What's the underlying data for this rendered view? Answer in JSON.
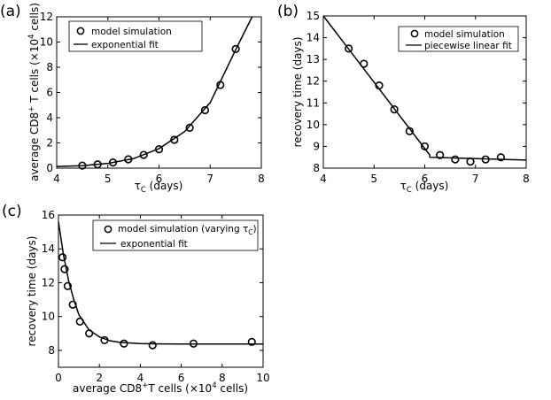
{
  "chart_data": [
    {
      "panel": "(a)",
      "type": "scatter",
      "xlabel": "τC (days)",
      "ylabel": "average CD8⁺ T cells (×10⁴ cells)",
      "xlim": [
        4,
        8
      ],
      "ylim": [
        0,
        12
      ],
      "xticks": [
        4,
        5,
        6,
        7,
        8
      ],
      "yticks": [
        0,
        2,
        4,
        6,
        8,
        10,
        12
      ],
      "grid": false,
      "legend_position": "top-left",
      "series": [
        {
          "name": "model simulation",
          "kind": "markers",
          "x": [
            4.5,
            4.8,
            5.1,
            5.4,
            5.7,
            6.0,
            6.3,
            6.6,
            6.9,
            7.2,
            7.5
          ],
          "y": [
            0.2,
            0.3,
            0.45,
            0.7,
            1.05,
            1.5,
            2.25,
            3.2,
            4.6,
            6.6,
            9.45
          ]
        },
        {
          "name": "exponential fit",
          "kind": "line",
          "x": [
            4.0,
            4.5,
            5.0,
            5.5,
            6.0,
            6.5,
            7.0,
            7.5,
            7.82
          ],
          "y": [
            0.13,
            0.2,
            0.38,
            0.75,
            1.55,
            2.9,
            5.2,
            9.4,
            12.0
          ]
        }
      ]
    },
    {
      "panel": "(b)",
      "type": "scatter",
      "xlabel": "τC (days)",
      "ylabel": "recovery time (days)",
      "xlim": [
        4,
        8
      ],
      "ylim": [
        8,
        15
      ],
      "xticks": [
        4,
        5,
        6,
        7,
        8
      ],
      "yticks": [
        8,
        9,
        10,
        11,
        12,
        13,
        14,
        15
      ],
      "grid": false,
      "legend_position": "top-right",
      "series": [
        {
          "name": "model simulation",
          "kind": "markers",
          "x": [
            4.5,
            4.8,
            5.1,
            5.4,
            5.7,
            6.0,
            6.3,
            6.6,
            6.9,
            7.2,
            7.5
          ],
          "y": [
            13.5,
            12.8,
            11.8,
            10.7,
            9.7,
            9.0,
            8.6,
            8.4,
            8.3,
            8.4,
            8.5
          ]
        },
        {
          "name": "piecewise linear fit",
          "kind": "line",
          "x": [
            4.0,
            6.1,
            6.1,
            8.0
          ],
          "y": [
            15.0,
            8.6,
            8.5,
            8.37
          ]
        }
      ]
    },
    {
      "panel": "(c)",
      "type": "scatter",
      "xlabel": "average CD8⁺T cells (×10⁴ cells)",
      "ylabel": "recovery time (days)",
      "xlim": [
        0,
        10
      ],
      "ylim": [
        7,
        16
      ],
      "xticks": [
        0,
        2,
        4,
        6,
        8,
        10
      ],
      "yticks": [
        8,
        10,
        12,
        14,
        16
      ],
      "grid": false,
      "legend_position": "top-right",
      "series": [
        {
          "name": "model simulation (varying τC)",
          "kind": "markers",
          "x": [
            0.2,
            0.3,
            0.45,
            0.7,
            1.05,
            1.5,
            2.25,
            3.2,
            4.6,
            6.6,
            9.45
          ],
          "y": [
            13.5,
            12.8,
            11.8,
            10.7,
            9.7,
            9.0,
            8.6,
            8.4,
            8.3,
            8.4,
            8.5
          ]
        },
        {
          "name": "exponential fit",
          "kind": "line",
          "x": [
            0.0,
            0.25,
            0.5,
            0.75,
            1.0,
            1.5,
            2.0,
            2.5,
            3.0,
            4.0,
            5.0,
            6.0,
            8.0,
            10.0
          ],
          "y": [
            15.6,
            13.6,
            12.1,
            11.0,
            10.1,
            9.2,
            8.8,
            8.57,
            8.47,
            8.4,
            8.38,
            8.37,
            8.37,
            8.37
          ]
        }
      ]
    }
  ]
}
